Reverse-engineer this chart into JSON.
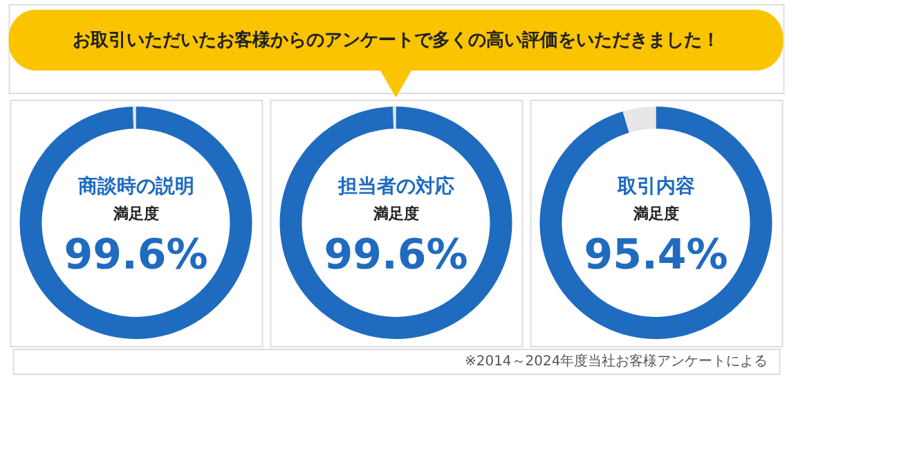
{
  "chart_data": [
    {
      "type": "donut",
      "title": "商談時の説明",
      "subtitle": "満足度",
      "categories": [
        null,
        null
      ],
      "values": [
        99.6,
        0.4
      ],
      "colors": [
        "#1f6bbf",
        "#e6e6e6"
      ],
      "value_labels": [
        "99.6%",
        null
      ],
      "annotations": [
        "お取引いただいたお客様からのアンケートで多くの高い評価をいただきました！"
      ]
    },
    {
      "type": "donut",
      "title": "担当者の対応",
      "subtitle": "満足度",
      "categories": [
        null,
        null
      ],
      "values": [
        99.6,
        0.4
      ],
      "colors": [
        "#1f6bbf",
        "#e6e6e6"
      ],
      "value_labels": [
        "99.6%",
        null
      ]
    },
    {
      "type": "donut",
      "title": "取引内容",
      "subtitle": "満足度",
      "categories": [
        null,
        null
      ],
      "values": [
        95.4,
        4.6
      ],
      "colors": [
        "#1f6bbf",
        "#e6e6e6"
      ],
      "value_labels": [
        "95.4%",
        null
      ],
      "annotations": [
        "※2014～2024年度当社お客様アンケートによる"
      ]
    }
  ]
}
